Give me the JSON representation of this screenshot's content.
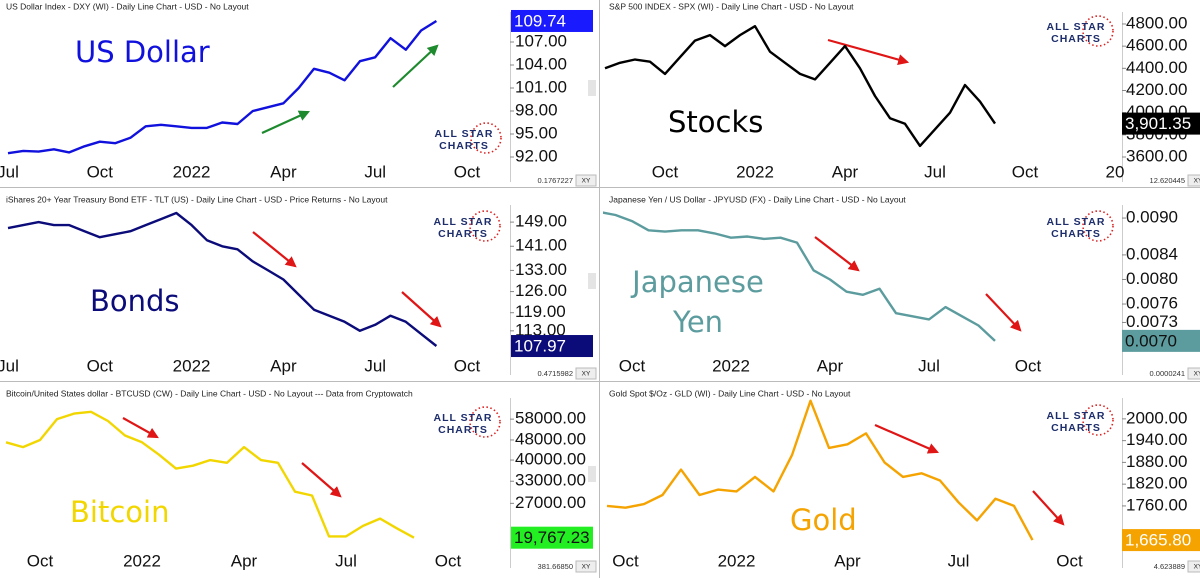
{
  "chart_data": [
    {
      "type": "line",
      "title": "US Dollar Index - DXY (WI) - Daily Line Chart - USD - No Layout",
      "label": "US Dollar",
      "watermark": [
        "ALL STAR",
        "CHARTS"
      ],
      "color": "#1111dd",
      "categories": [
        "Jul",
        null,
        null,
        null,
        null,
        null,
        "Oct",
        null,
        null,
        null,
        null,
        null,
        "2022",
        null,
        null,
        null,
        null,
        null,
        "Apr",
        null,
        null,
        null,
        null,
        null,
        "Jul",
        null,
        null,
        null,
        null,
        null,
        "Oct"
      ],
      "values": [
        92.5,
        92.8,
        92.7,
        93.0,
        92.6,
        93.4,
        94.0,
        93.8,
        94.5,
        96.0,
        96.2,
        96.0,
        95.8,
        95.8,
        96.5,
        96.3,
        98.0,
        98.5,
        99.0,
        101.0,
        103.5,
        103.0,
        102.0,
        104.5,
        105.0,
        107.5,
        106.0,
        108.5,
        109.74,
        null,
        null
      ],
      "ylim": [
        91.35,
        110.65
      ],
      "yticks": [
        {
          "value": 92,
          "label": "92.00"
        },
        {
          "value": 95,
          "label": "95.00"
        },
        {
          "value": 98,
          "label": "98.00"
        },
        {
          "value": 101,
          "label": "101.00"
        },
        {
          "value": 104,
          "label": "104.00"
        },
        {
          "value": 107,
          "label": "107.00"
        }
      ],
      "last_value": 109.74,
      "last_value_color": "#1a1aff",
      "scale_text": "0.1767227",
      "xy_button": "XY"
    },
    {
      "type": "line",
      "title": "S&P 500 INDEX - SPX (WI) - Daily Line Chart - USD - No Layout",
      "label": "Stocks",
      "watermark": [
        "ALL STAR",
        "CHARTS"
      ],
      "color": "#000000",
      "categories": [
        null,
        null,
        null,
        null,
        "Oct",
        null,
        null,
        null,
        null,
        null,
        "2022",
        null,
        null,
        null,
        null,
        null,
        "Apr",
        null,
        null,
        null,
        null,
        null,
        "Jul",
        null,
        null,
        null,
        null,
        null,
        "Oct",
        null,
        null,
        null,
        null,
        null,
        "20"
      ],
      "values": [
        4400,
        4450,
        4480,
        4460,
        4350,
        4500,
        4650,
        4700,
        4600,
        4700,
        4780,
        4550,
        4450,
        4350,
        4300,
        4450,
        4600,
        4400,
        4150,
        3950,
        3900,
        3700,
        3850,
        4000,
        4250,
        4100,
        3901.35,
        null,
        null,
        null,
        null,
        null,
        null,
        null,
        null
      ],
      "ylim": [
        3555,
        4890
      ],
      "yticks": [
        {
          "value": 3600,
          "label": "3600.00"
        },
        {
          "value": 3800,
          "label": "3800.00"
        },
        {
          "value": 4000,
          "label": "4000.00"
        },
        {
          "value": 4200,
          "label": "4200.00"
        },
        {
          "value": 4400,
          "label": "4400.00"
        },
        {
          "value": 4600,
          "label": "4600.00"
        },
        {
          "value": 4800,
          "label": "4800.00"
        }
      ],
      "last_value": 3901.35,
      "last_value_label": "3,901.35",
      "last_value_color": "#000000",
      "scale_text": "12.620445",
      "xy_button": "XY"
    },
    {
      "type": "line",
      "title": "iShares 20+ Year Treasury Bond ETF - TLT (US) - Daily Line Chart - USD - Price Returns - No Layout",
      "label": "Bonds",
      "watermark": [
        "ALL STAR",
        "CHARTS"
      ],
      "color": "#0b0b7a",
      "categories": [
        "Jul",
        null,
        null,
        null,
        null,
        null,
        "Oct",
        null,
        null,
        null,
        null,
        null,
        "2022",
        null,
        null,
        null,
        null,
        null,
        "Apr",
        null,
        null,
        null,
        null,
        null,
        "Jul",
        null,
        null,
        null,
        null,
        null,
        "Oct"
      ],
      "values": [
        147,
        148,
        149,
        148,
        148,
        146,
        144,
        145,
        146,
        148,
        150,
        152,
        148,
        143,
        141,
        140,
        136,
        133,
        130,
        125,
        120,
        118,
        116,
        113,
        115,
        118,
        116,
        112,
        107.97,
        null,
        null
      ],
      "ylim": [
        105,
        154
      ],
      "yticks": [
        {
          "value": 113,
          "label": "113.00"
        },
        {
          "value": 119,
          "label": "119.00"
        },
        {
          "value": 126,
          "label": "126.00"
        },
        {
          "value": 133,
          "label": "133.00"
        },
        {
          "value": 141,
          "label": "141.00"
        },
        {
          "value": 149,
          "label": "149.00"
        }
      ],
      "last_value": 107.97,
      "last_value_color": "#0b0b7a",
      "scale_text": "0.4715982",
      "xy_button": "XY"
    },
    {
      "type": "line",
      "title": "Japanese Yen / US Dollar - JPYUSD (FX) - Daily Line Chart - USD - No Layout",
      "label": "Japanese Yen",
      "watermark": [
        "ALL STAR",
        "CHARTS"
      ],
      "color": "#5c9c9e",
      "categories": [
        null,
        null,
        "Oct",
        null,
        null,
        null,
        null,
        null,
        "2022",
        null,
        null,
        null,
        null,
        null,
        "Apr",
        null,
        null,
        null,
        null,
        null,
        "Jul",
        null,
        null,
        null,
        null,
        null,
        "Oct"
      ],
      "values": [
        0.0091,
        0.00905,
        0.00895,
        0.0088,
        0.00878,
        0.0088,
        0.0088,
        0.00875,
        0.00868,
        0.0087,
        0.00866,
        0.00868,
        0.0086,
        0.00815,
        0.008,
        0.0078,
        0.00775,
        0.00785,
        0.00745,
        0.0074,
        0.00735,
        0.00755,
        0.0074,
        0.00725,
        0.007,
        null,
        null
      ],
      "ylim": [
        0.00677,
        0.00918
      ],
      "yticks": [
        {
          "value": 0.0073,
          "label": "0.0073"
        },
        {
          "value": 0.0076,
          "label": "0.0076"
        },
        {
          "value": 0.008,
          "label": "0.0080"
        },
        {
          "value": 0.0084,
          "label": "0.0084"
        },
        {
          "value": 0.009,
          "label": "0.0090"
        }
      ],
      "last_value": 0.007,
      "last_value_label": "0.0070",
      "last_value_color": "#5c9c9e",
      "scale_text": "0.0000241",
      "xy_button": "XY"
    },
    {
      "type": "line",
      "title": "Bitcoin/United States dollar - BTCUSD (CW) - Daily Line Chart - USD - No Layout --- Data from Cryptowatch",
      "label": "Bitcoin",
      "watermark": [
        "ALL STAR",
        "CHARTS"
      ],
      "color": "#f2d600",
      "log_scale": true,
      "categories": [
        null,
        null,
        "Oct",
        null,
        null,
        null,
        null,
        null,
        "2022",
        null,
        null,
        null,
        null,
        null,
        "Apr",
        null,
        null,
        null,
        null,
        null,
        "Jul",
        null,
        null,
        null,
        null,
        null,
        "Oct"
      ],
      "values": [
        47000,
        45000,
        48000,
        58000,
        61000,
        62000,
        57000,
        50000,
        47000,
        42000,
        37000,
        38000,
        40000,
        39000,
        45000,
        40000,
        39000,
        30000,
        29000,
        20000,
        20000,
        22000,
        23500,
        21500,
        19767.23,
        null,
        null
      ],
      "ylim": [
        18000,
        69000
      ],
      "yticks": [
        {
          "value": 27000,
          "label": "27000.00"
        },
        {
          "value": 33000,
          "label": "33000.00"
        },
        {
          "value": 40000,
          "label": "40000.00"
        },
        {
          "value": 48000,
          "label": "48000.00"
        },
        {
          "value": 58000,
          "label": "58000.00"
        }
      ],
      "last_value": 19767.23,
      "last_value_label": "19,767.23",
      "last_value_color": "#22ee22",
      "scale_text": "381.66850",
      "xy_button": "XY"
    },
    {
      "type": "line",
      "title": "Gold Spot $/Oz - GLD (WI) - Daily Line Chart - USD - No Layout",
      "label": "Gold",
      "watermark": [
        "ALL STAR",
        "CHARTS"
      ],
      "color": "#f5a300",
      "categories": [
        null,
        "Oct",
        null,
        null,
        null,
        null,
        null,
        "2022",
        null,
        null,
        null,
        null,
        null,
        "Apr",
        null,
        null,
        null,
        null,
        null,
        "Jul",
        null,
        null,
        null,
        null,
        null,
        "Oct"
      ],
      "values": [
        1760,
        1755,
        1765,
        1790,
        1860,
        1790,
        1805,
        1800,
        1840,
        1800,
        1900,
        2050,
        1920,
        1930,
        1960,
        1880,
        1840,
        1850,
        1830,
        1770,
        1720,
        1780,
        1760,
        1665.8,
        null,
        null
      ],
      "ylim": [
        1644,
        2052
      ],
      "yticks": [
        {
          "value": 1760,
          "label": "1760.00"
        },
        {
          "value": 1820,
          "label": "1820.00"
        },
        {
          "value": 1880,
          "label": "1880.00"
        },
        {
          "value": 1940,
          "label": "1940.00"
        },
        {
          "value": 2000,
          "label": "2000.00"
        }
      ],
      "last_value": 1665.8,
      "last_value_label": "1,665.80",
      "last_value_color": "#f5a300",
      "scale_text": "4.623889",
      "xy_button": "XY"
    }
  ]
}
